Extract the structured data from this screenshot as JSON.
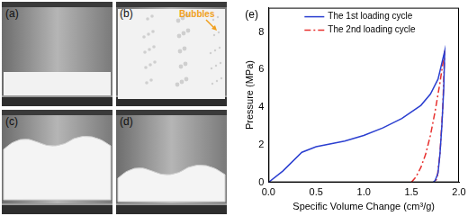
{
  "photos": [
    {
      "label": "(a)"
    },
    {
      "label": "(b)",
      "annotation": "Bubbles"
    },
    {
      "label": "(c)"
    },
    {
      "label": "(d)"
    }
  ],
  "chart_data": {
    "type": "line",
    "title": "(e)",
    "xlabel": "Specific Volume Change (cm³/g)",
    "ylabel": "Pressure (MPa)",
    "xlim": [
      0,
      2.0
    ],
    "xticks": [
      {
        "value": 0,
        "label": "0.0"
      },
      0.5,
      {
        "value": 1,
        "label": "1.0"
      },
      1.5,
      {
        "value": 2,
        "label": "2.0"
      }
    ],
    "ylim": [
      0,
      9.3
    ],
    "yticks": [
      0,
      2,
      4,
      6,
      8
    ],
    "grid": false,
    "legend": "upper left",
    "series": [
      {
        "name": "The 1st loading cycle",
        "color": "#2b3fd0",
        "line_style": "solid",
        "marker": "none",
        "x": [
          0,
          0.15,
          0.35,
          0.5,
          0.8,
          1.0,
          1.2,
          1.4,
          1.6,
          1.7,
          1.78,
          1.85,
          1.84,
          1.82,
          1.8,
          1.78,
          1.75,
          1.73
        ],
        "values": [
          0,
          0.6,
          1.6,
          1.9,
          2.2,
          2.5,
          2.9,
          3.4,
          4.1,
          4.7,
          5.5,
          7.0,
          5.0,
          3.0,
          1.5,
          0.5,
          0.1,
          0
        ]
      },
      {
        "name": "The 2nd loading cycle",
        "color": "#e8312f",
        "line_style": "dash-dot",
        "marker": "none",
        "x": [
          1.5,
          1.55,
          1.6,
          1.65,
          1.7,
          1.75,
          1.8,
          1.85,
          1.83,
          1.8,
          1.77,
          1.74
        ],
        "values": [
          0,
          0.3,
          0.8,
          1.5,
          2.5,
          3.8,
          5.3,
          7.0,
          4.0,
          1.5,
          0.2,
          0
        ]
      }
    ]
  }
}
